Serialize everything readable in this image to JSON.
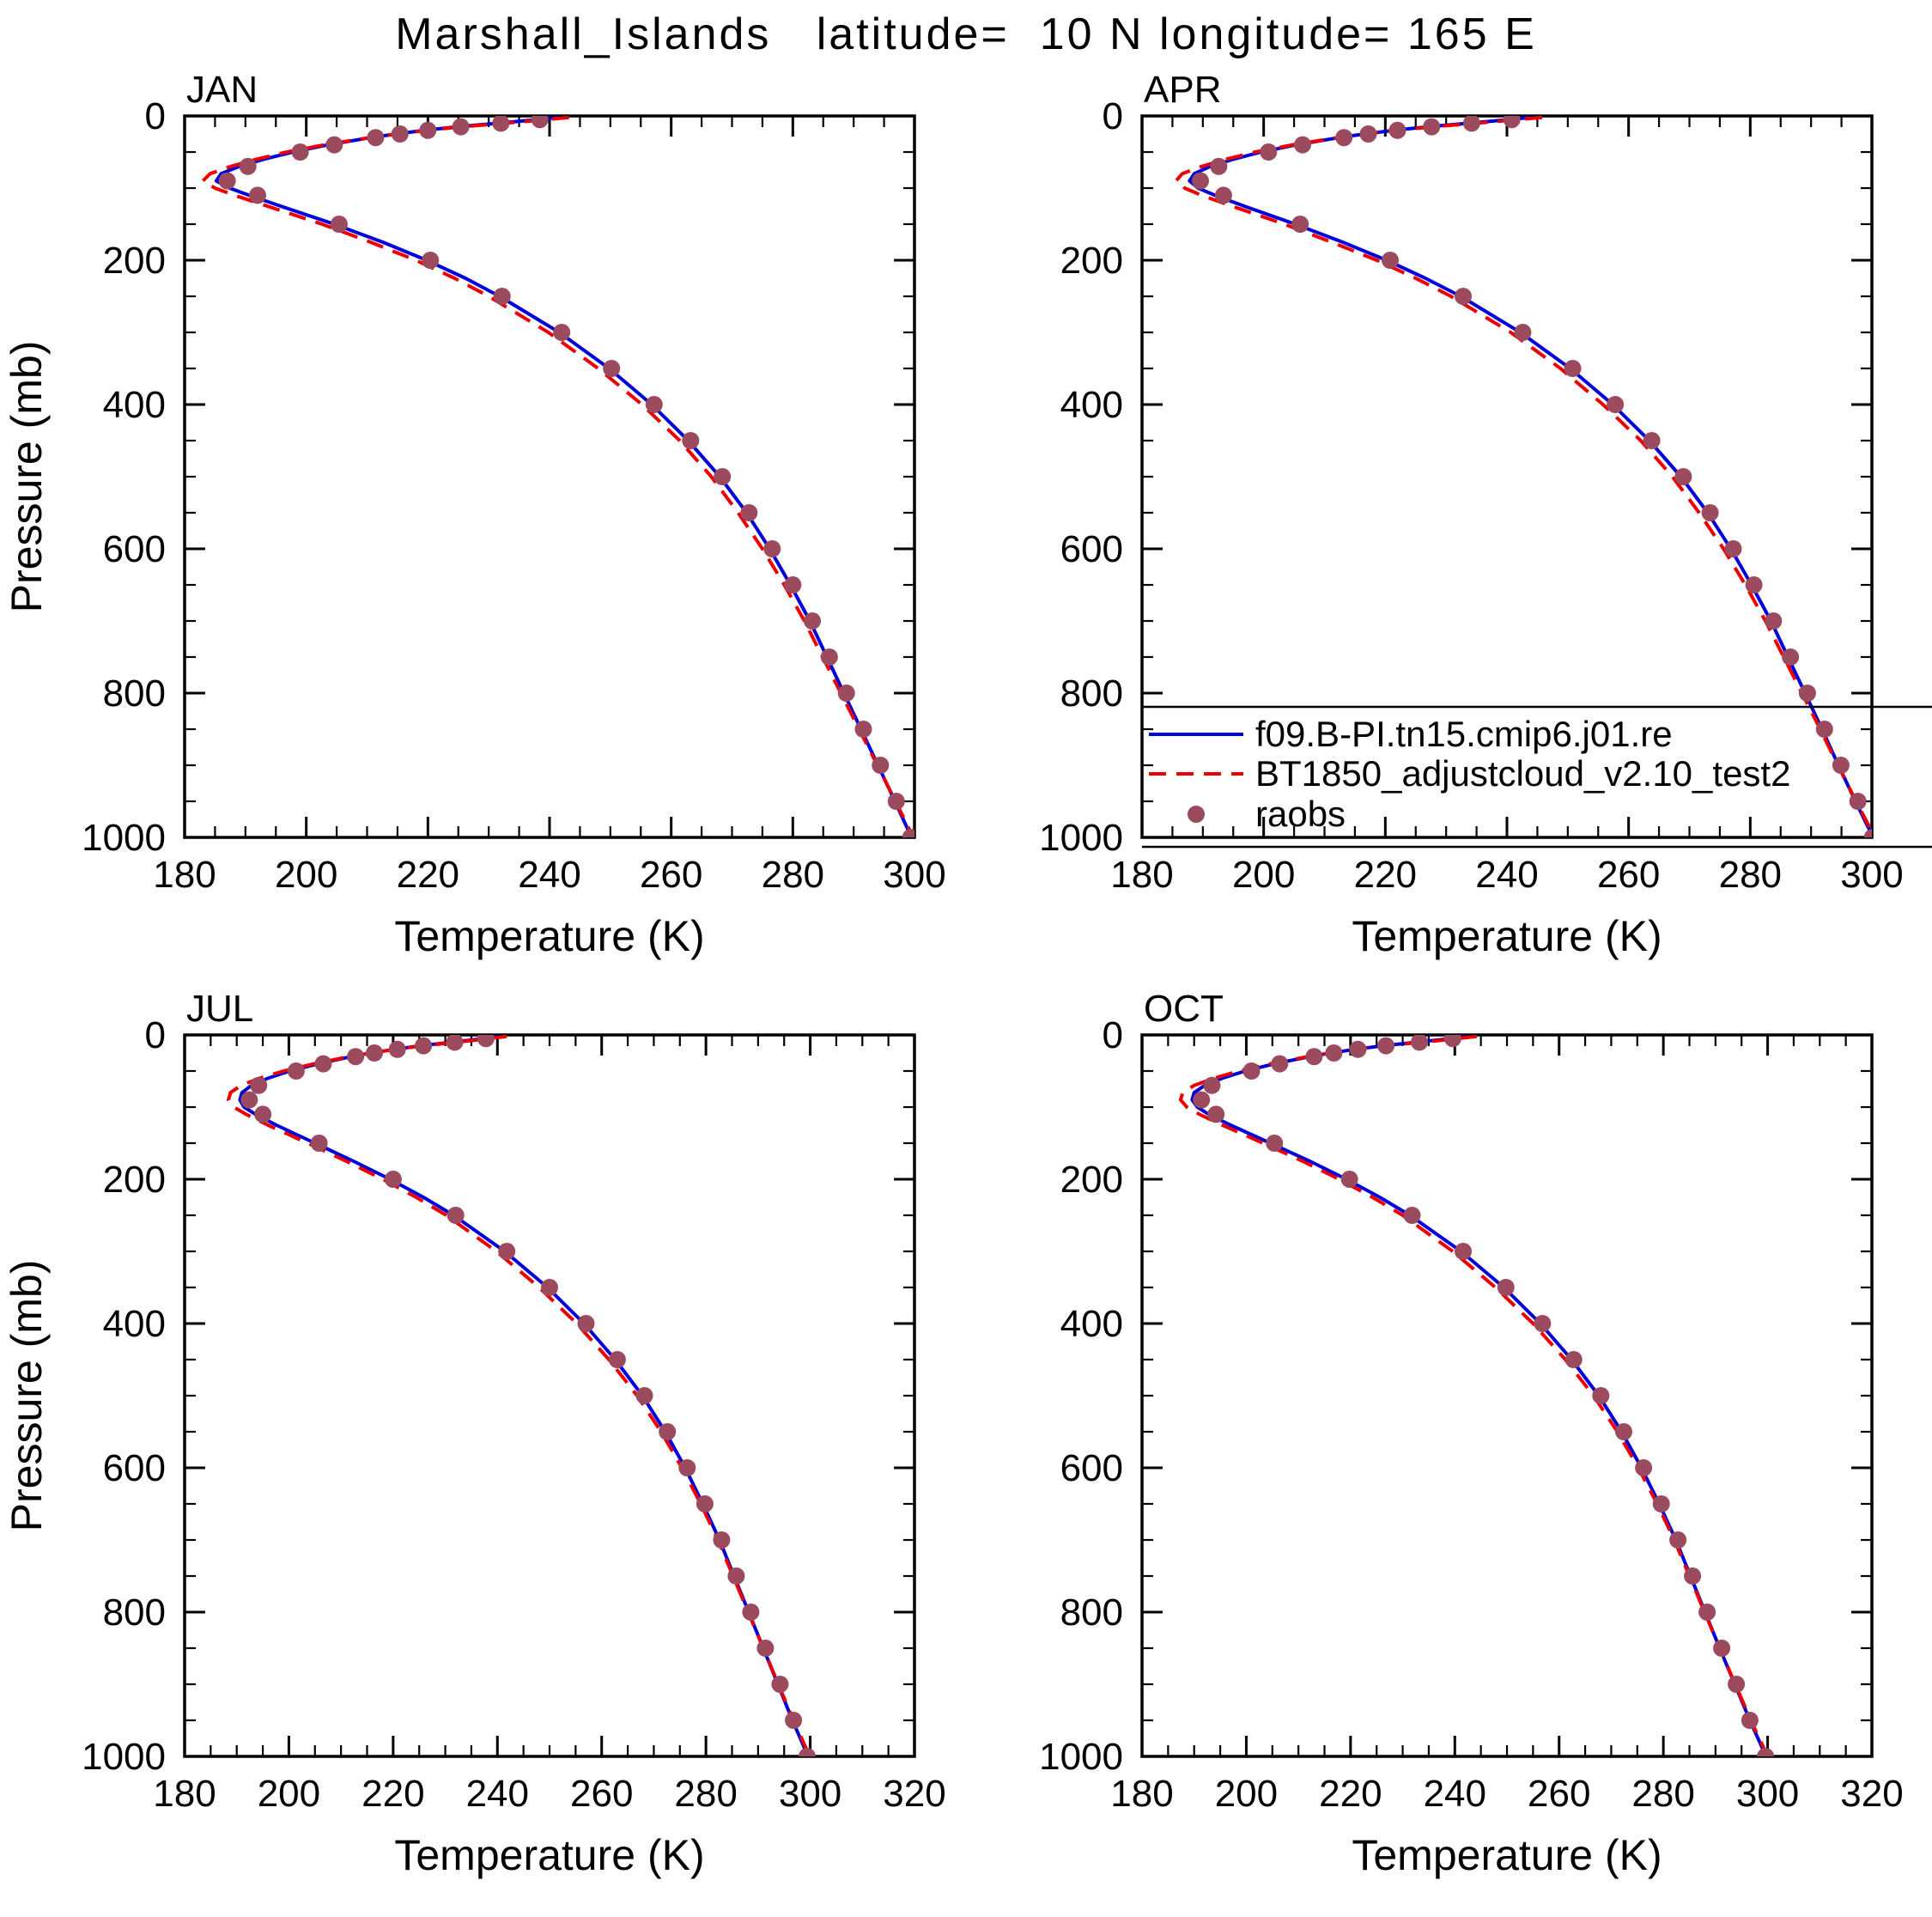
{
  "title": "Marshall_Islands   latitude=  10 N longitude= 165 E",
  "axis_labels": {
    "x": "Temperature (K)",
    "y": "Pressure (mb)"
  },
  "colors": {
    "model1": "#0000dd",
    "model2": "#ee0000",
    "obs": "#9c4a5e",
    "axis": "#000000",
    "background": "#ffffff"
  },
  "legend": {
    "panel": "APR",
    "entries": [
      {
        "label": "f09.B-PI.tn15.cmip6.j01.re",
        "marker": "solid-line"
      },
      {
        "label": "BT1850_adjustcloud_v2.10_test2",
        "marker": "dashed-line"
      },
      {
        "label": "raobs",
        "marker": "dot"
      }
    ]
  },
  "chart_data": [
    {
      "type": "line",
      "label": "JAN",
      "xlabel": "Temperature (K)",
      "ylabel": "Pressure (mb)",
      "xlim": [
        180,
        300
      ],
      "xtick_step": 20,
      "x_minor": 5,
      "ylim": [
        0,
        1000
      ],
      "ytick_step": 200,
      "y_minor": 50,
      "y_increases_downward": true,
      "series": [
        {
          "name": "f09.B-PI.tn15.cmip6.j01.re",
          "style": "solid",
          "color_key": "model1",
          "pressure": [
            2,
            5,
            10,
            15,
            20,
            25,
            30,
            40,
            50,
            60,
            70,
            80,
            90,
            100,
            110,
            125,
            150,
            175,
            200,
            225,
            250,
            300,
            350,
            400,
            450,
            500,
            550,
            600,
            650,
            700,
            750,
            800,
            850,
            900,
            950,
            1000
          ],
          "temperature": [
            241.5,
            238.0,
            231.6,
            224.8,
            219.4,
            214.8,
            210.6,
            203.6,
            197.8,
            193.0,
            189.0,
            186.0,
            185.2,
            187.4,
            190.6,
            195.8,
            204.6,
            212.6,
            219.8,
            226.2,
            231.8,
            241.6,
            249.8,
            256.8,
            262.8,
            268.0,
            272.4,
            276.2,
            279.6,
            282.8,
            285.6,
            288.4,
            291.2,
            294.0,
            296.8,
            299.5
          ]
        },
        {
          "name": "BT1850_adjustcloud_v2.10_test2",
          "style": "dashed",
          "color_key": "model2",
          "pressure": [
            2,
            5,
            10,
            15,
            20,
            25,
            30,
            40,
            50,
            60,
            70,
            80,
            90,
            100,
            110,
            125,
            150,
            175,
            200,
            225,
            250,
            300,
            350,
            400,
            450,
            500,
            550,
            600,
            650,
            700,
            750,
            800,
            850,
            900,
            950,
            1000
          ],
          "temperature": [
            243.2,
            239.6,
            232.8,
            225.6,
            219.8,
            214.9,
            210.4,
            203.0,
            196.8,
            191.8,
            187.6,
            184.2,
            183.0,
            185.0,
            188.2,
            193.6,
            202.6,
            210.6,
            218.0,
            224.4,
            230.0,
            239.8,
            248.0,
            255.2,
            261.4,
            266.6,
            271.0,
            275.0,
            278.6,
            281.9,
            284.9,
            287.9,
            290.9,
            293.9,
            296.9,
            299.8
          ]
        },
        {
          "name": "raobs",
          "style": "dots",
          "color_key": "obs",
          "pressure": [
            5,
            10,
            15,
            20,
            25,
            30,
            40,
            50,
            70,
            90,
            110,
            150,
            200,
            250,
            300,
            350,
            400,
            450,
            500,
            550,
            600,
            650,
            700,
            750,
            800,
            850,
            900,
            950,
            1000
          ],
          "temperature": [
            238.4,
            232.0,
            225.4,
            220.0,
            215.4,
            211.4,
            204.6,
            199.0,
            190.4,
            187.0,
            192.0,
            205.4,
            220.4,
            232.2,
            242.0,
            250.2,
            257.2,
            263.2,
            268.4,
            272.8,
            276.6,
            280.0,
            283.2,
            286.0,
            288.8,
            291.6,
            294.4,
            297.0,
            299.4
          ]
        }
      ]
    },
    {
      "type": "line",
      "label": "APR",
      "xlabel": "Temperature (K)",
      "ylabel": "Pressure (mb)",
      "xlim": [
        180,
        300
      ],
      "xtick_step": 20,
      "x_minor": 5,
      "ylim": [
        0,
        1000
      ],
      "ytick_step": 200,
      "y_minor": 50,
      "y_increases_downward": true,
      "series": [
        {
          "name": "f09.B-PI.tn15.cmip6.j01.re",
          "style": "solid",
          "color_key": "model1",
          "pressure": [
            2,
            5,
            10,
            15,
            20,
            25,
            30,
            40,
            50,
            60,
            70,
            80,
            90,
            100,
            110,
            125,
            150,
            175,
            200,
            225,
            250,
            300,
            350,
            400,
            450,
            500,
            550,
            600,
            650,
            700,
            750,
            800,
            850,
            900,
            950,
            1000
          ],
          "temperature": [
            244.0,
            240.4,
            233.8,
            227.0,
            221.4,
            216.6,
            212.4,
            205.4,
            199.6,
            195.0,
            191.2,
            188.6,
            187.8,
            189.2,
            192.0,
            196.8,
            205.2,
            213.0,
            220.2,
            226.6,
            232.4,
            242.2,
            250.4,
            257.4,
            263.4,
            268.6,
            273.0,
            276.8,
            280.2,
            283.4,
            286.2,
            289.0,
            291.8,
            294.5,
            297.3,
            300.2
          ]
        },
        {
          "name": "BT1850_adjustcloud_v2.10_test2",
          "style": "dashed",
          "color_key": "model2",
          "pressure": [
            2,
            5,
            10,
            15,
            20,
            25,
            30,
            40,
            50,
            60,
            70,
            80,
            90,
            100,
            110,
            125,
            150,
            175,
            200,
            225,
            250,
            300,
            350,
            400,
            450,
            500,
            550,
            600,
            650,
            700,
            750,
            800,
            850,
            900,
            950,
            1000
          ],
          "temperature": [
            245.8,
            242.0,
            235.0,
            227.8,
            221.8,
            216.7,
            212.2,
            204.8,
            198.6,
            193.8,
            189.8,
            186.6,
            185.6,
            187.0,
            189.8,
            194.8,
            203.4,
            211.2,
            218.6,
            225.0,
            230.8,
            240.6,
            248.8,
            255.8,
            262.0,
            267.2,
            271.6,
            275.6,
            279.2,
            282.5,
            285.5,
            288.5,
            291.5,
            294.4,
            297.4,
            300.5
          ]
        },
        {
          "name": "raobs",
          "style": "dots",
          "color_key": "obs",
          "pressure": [
            5,
            10,
            15,
            20,
            25,
            30,
            40,
            50,
            70,
            90,
            110,
            150,
            200,
            250,
            300,
            350,
            400,
            450,
            500,
            550,
            600,
            650,
            700,
            750,
            800,
            850,
            900,
            950,
            1000
          ],
          "temperature": [
            240.8,
            234.2,
            227.6,
            222.0,
            217.2,
            213.2,
            206.4,
            200.8,
            192.6,
            189.6,
            193.4,
            206.0,
            220.8,
            232.8,
            242.6,
            250.8,
            257.8,
            263.8,
            269.0,
            273.4,
            277.2,
            280.6,
            283.8,
            286.6,
            289.4,
            292.2,
            294.9,
            297.7,
            300.1
          ]
        }
      ]
    },
    {
      "type": "line",
      "label": "JUL",
      "xlabel": "Temperature (K)",
      "ylabel": "Pressure (mb)",
      "xlim": [
        180,
        320
      ],
      "xtick_step": 20,
      "x_minor": 5,
      "ylim": [
        0,
        1000
      ],
      "ytick_step": 200,
      "y_minor": 50,
      "y_increases_downward": true,
      "series": [
        {
          "name": "f09.B-PI.tn15.cmip6.j01.re",
          "style": "solid",
          "color_key": "model1",
          "pressure": [
            2,
            5,
            10,
            15,
            20,
            25,
            30,
            40,
            50,
            60,
            70,
            80,
            90,
            100,
            110,
            125,
            150,
            175,
            200,
            225,
            250,
            300,
            350,
            400,
            450,
            500,
            550,
            600,
            650,
            700,
            750,
            800,
            850,
            900,
            950,
            1000
          ],
          "temperature": [
            240.6,
            237.4,
            231.4,
            225.2,
            220.2,
            215.8,
            212.0,
            205.6,
            200.2,
            196.0,
            192.8,
            191.0,
            190.6,
            191.4,
            193.6,
            197.6,
            205.0,
            212.4,
            219.4,
            225.8,
            231.6,
            241.4,
            249.6,
            256.6,
            262.6,
            267.8,
            272.2,
            276.0,
            279.4,
            282.6,
            285.4,
            288.2,
            291.0,
            293.8,
            296.6,
            299.6
          ]
        },
        {
          "name": "BT1850_adjustcloud_v2.10_test2",
          "style": "dashed",
          "color_key": "model2",
          "pressure": [
            2,
            5,
            10,
            15,
            20,
            25,
            30,
            40,
            50,
            60,
            70,
            80,
            90,
            100,
            110,
            125,
            150,
            175,
            200,
            225,
            250,
            300,
            350,
            400,
            450,
            500,
            550,
            600,
            650,
            700,
            750,
            800,
            850,
            900,
            950,
            1000
          ],
          "temperature": [
            241.8,
            238.6,
            232.2,
            225.7,
            220.4,
            215.7,
            211.6,
            204.8,
            199.0,
            194.4,
            190.8,
            188.8,
            188.4,
            189.4,
            191.8,
            196.0,
            203.6,
            211.0,
            218.0,
            224.4,
            230.2,
            239.8,
            248.0,
            255.2,
            261.4,
            266.8,
            271.4,
            275.4,
            279.0,
            282.3,
            285.2,
            288.1,
            291.0,
            293.9,
            296.8,
            299.9
          ]
        },
        {
          "name": "raobs",
          "style": "dots",
          "color_key": "obs",
          "pressure": [
            5,
            10,
            15,
            20,
            25,
            30,
            40,
            50,
            70,
            90,
            110,
            150,
            200,
            250,
            300,
            350,
            400,
            450,
            500,
            550,
            600,
            650,
            700,
            750,
            800,
            850,
            900,
            950,
            1000
          ],
          "temperature": [
            237.8,
            231.8,
            225.8,
            220.8,
            216.4,
            212.8,
            206.6,
            201.4,
            194.2,
            192.4,
            195.0,
            205.8,
            220.0,
            232.0,
            241.8,
            250.0,
            257.0,
            263.0,
            268.2,
            272.6,
            276.4,
            279.8,
            283.0,
            285.8,
            288.6,
            291.4,
            294.2,
            296.8,
            299.4
          ]
        }
      ]
    },
    {
      "type": "line",
      "label": "OCT",
      "xlabel": "Temperature (K)",
      "ylabel": "Pressure (mb)",
      "xlim": [
        180,
        320
      ],
      "xtick_step": 20,
      "x_minor": 5,
      "ylim": [
        0,
        1000
      ],
      "ytick_step": 200,
      "y_minor": 50,
      "y_increases_downward": true,
      "series": [
        {
          "name": "f09.B-PI.tn15.cmip6.j01.re",
          "style": "solid",
          "color_key": "model1",
          "pressure": [
            2,
            5,
            10,
            15,
            20,
            25,
            30,
            40,
            50,
            60,
            70,
            80,
            90,
            100,
            110,
            125,
            150,
            175,
            200,
            225,
            250,
            300,
            350,
            400,
            450,
            500,
            550,
            600,
            650,
            700,
            750,
            800,
            850,
            900,
            950,
            1000
          ],
          "temperature": [
            242.6,
            239.2,
            232.8,
            226.2,
            220.8,
            216.2,
            212.2,
            205.4,
            199.8,
            195.4,
            192.0,
            190.0,
            189.6,
            190.6,
            192.8,
            197.0,
            204.6,
            212.2,
            219.2,
            225.6,
            231.4,
            241.2,
            249.4,
            256.4,
            262.4,
            267.6,
            272.0,
            275.8,
            279.2,
            282.4,
            285.2,
            288.0,
            290.8,
            293.7,
            296.6,
            299.7
          ]
        },
        {
          "name": "BT1850_adjustcloud_v2.10_test2",
          "style": "dashed",
          "color_key": "model2",
          "pressure": [
            2,
            5,
            10,
            15,
            20,
            25,
            30,
            40,
            50,
            60,
            70,
            80,
            90,
            100,
            110,
            125,
            150,
            175,
            200,
            225,
            250,
            300,
            350,
            400,
            450,
            500,
            550,
            600,
            650,
            700,
            750,
            800,
            850,
            900,
            950,
            1000
          ],
          "temperature": [
            244.2,
            240.6,
            233.8,
            226.8,
            221.0,
            216.1,
            211.8,
            204.6,
            198.6,
            193.8,
            190.0,
            187.8,
            187.4,
            188.6,
            191.0,
            195.4,
            203.2,
            210.8,
            217.8,
            224.2,
            230.0,
            239.6,
            247.8,
            255.0,
            261.2,
            266.6,
            271.2,
            275.2,
            278.8,
            282.1,
            285.0,
            287.9,
            290.8,
            293.8,
            296.8,
            300.0
          ]
        },
        {
          "name": "raobs",
          "style": "dots",
          "color_key": "obs",
          "pressure": [
            5,
            10,
            15,
            20,
            25,
            30,
            40,
            50,
            70,
            90,
            110,
            150,
            200,
            250,
            300,
            350,
            400,
            450,
            500,
            550,
            600,
            650,
            700,
            750,
            800,
            850,
            900,
            950,
            1000
          ],
          "temperature": [
            239.6,
            233.2,
            226.8,
            221.4,
            216.8,
            213.0,
            206.4,
            201.0,
            193.4,
            191.4,
            194.2,
            205.4,
            219.8,
            231.8,
            241.6,
            249.8,
            256.8,
            262.8,
            268.0,
            272.4,
            276.2,
            279.6,
            282.8,
            285.6,
            288.4,
            291.2,
            294.0,
            296.6,
            299.6
          ]
        }
      ]
    }
  ]
}
